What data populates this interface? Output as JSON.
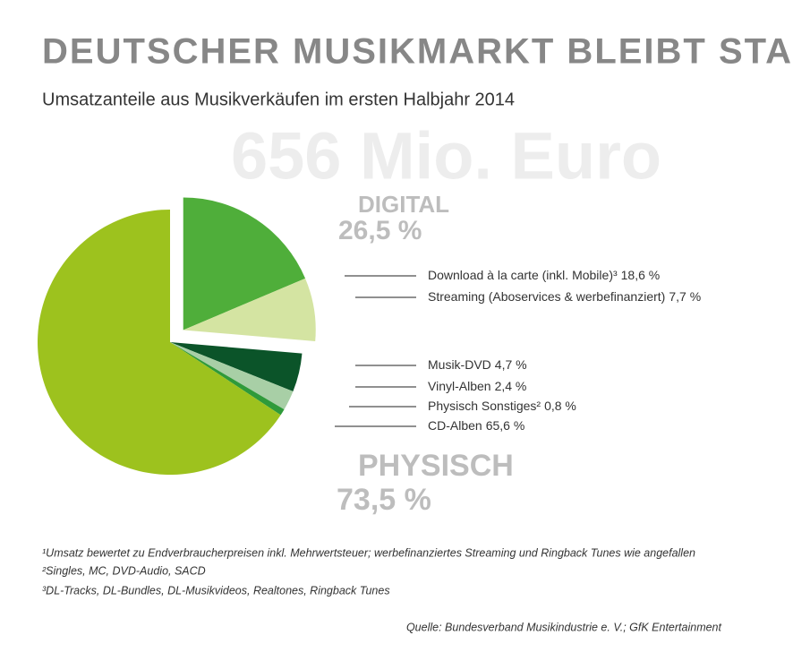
{
  "chart_data": {
    "type": "pie",
    "title": "DEUTSCHER MUSIKMARKT BLEIBT STABIL",
    "subtitle": "Umsatzanteile aus Musikverkäufen im ersten Halbjahr 2014",
    "total_label": "656 Mio. Euro",
    "categories": [
      "Download à la carte (inkl. Mobile)³",
      "Streaming (Aboservices & werbefinanziert)",
      "Musik-DVD",
      "Vinyl-Alben",
      "Physisch Sonstiges²",
      "CD-Alben"
    ],
    "values": [
      18.6,
      7.7,
      4.7,
      2.4,
      0.8,
      65.6
    ],
    "value_labels": [
      "18,6 %",
      "7,7 %",
      "4,7 %",
      "2,4 %",
      "0,8 %",
      "65,6 %"
    ],
    "colors": [
      "#4fae3a",
      "#d4e4a2",
      "#0b5429",
      "#a8cfa6",
      "#2f9a3a",
      "#9dc21e"
    ],
    "groups": [
      {
        "name": "DIGITAL",
        "value": 26.5,
        "value_label": "26,5 %"
      },
      {
        "name": "PHYSISCH",
        "value": 73.5,
        "value_label": "73,5 %"
      }
    ],
    "footnotes": [
      "¹Umsatz bewertet zu Endverbraucherpreisen inkl. Mehrwertsteuer; werbefinanziertes Streaming und Ringback Tunes wie angefallen",
      "²Singles, MC, DVD-Audio, SACD",
      "³DL-Tracks, DL-Bundles, DL-Musikvideos, Realtones, Ringback Tunes"
    ],
    "source": "Quelle: Bundesverband Musikindustrie e. V.; GfK Entertainment"
  }
}
